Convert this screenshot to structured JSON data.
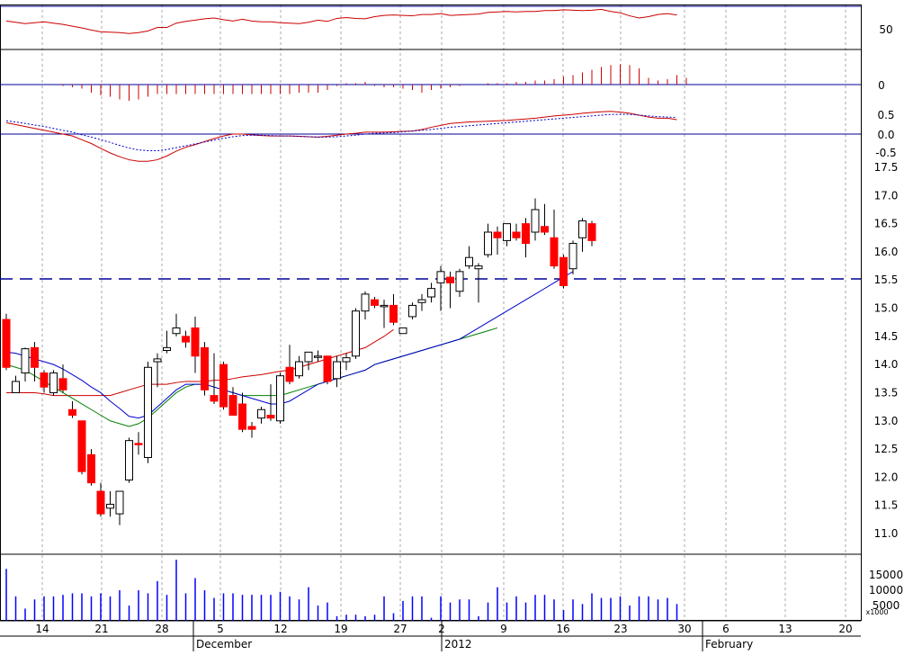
{
  "chart_data": {
    "type": "candlestick",
    "title": "",
    "ylim": [
      10.6,
      17.6
    ],
    "grid": true,
    "reference_level": 15.52,
    "colors": {
      "up": "#ffffff",
      "down": "#ff0000",
      "axis": "#000000",
      "frame": "#000099",
      "grid": "#aaaaaa",
      "ma_fast": "#0000cc",
      "ma_mid": "#008000",
      "ma_slow": "#cc0000",
      "volume": "#0000ff"
    },
    "x_tick_labels": [
      "14",
      "21",
      "28",
      "5",
      "12",
      "19",
      "27",
      "2",
      "9",
      "16",
      "23",
      "30",
      "6",
      "13",
      "20"
    ],
    "month_labels": [
      "December",
      "2012",
      "February"
    ],
    "y_tick_labels": [
      "17.5",
      "17.0",
      "16.5",
      "16.0",
      "15.5",
      "15.0",
      "14.5",
      "14.0",
      "13.5",
      "13.0",
      "12.5",
      "12.0",
      "11.5",
      "11.0"
    ],
    "y_ticks": [
      17.5,
      17.0,
      16.5,
      16.0,
      15.5,
      15.0,
      14.5,
      14.0,
      13.5,
      13.0,
      12.5,
      12.0,
      11.5,
      11.0
    ],
    "panels": {
      "rsi": {
        "label": "50",
        "values": [
          0.66,
          0.63,
          0.6,
          0.62,
          0.64,
          0.61,
          0.58,
          0.54,
          0.5,
          0.45,
          0.41,
          0.4,
          0.39,
          0.37,
          0.39,
          0.43,
          0.51,
          0.51,
          0.61,
          0.65,
          0.68,
          0.71,
          0.73,
          0.69,
          0.66,
          0.7,
          0.66,
          0.64,
          0.64,
          0.62,
          0.61,
          0.6,
          0.63,
          0.68,
          0.65,
          0.72,
          0.74,
          0.72,
          0.71,
          0.76,
          0.79,
          0.8,
          0.79,
          0.78,
          0.81,
          0.81,
          0.83,
          0.79,
          0.8,
          0.81,
          0.82,
          0.86,
          0.87,
          0.88,
          0.87,
          0.88,
          0.88,
          0.9,
          0.9,
          0.92,
          0.91,
          0.9,
          0.91,
          0.93,
          0.88,
          0.85,
          0.78,
          0.73,
          0.76,
          0.81,
          0.83,
          0.8
        ]
      },
      "histogram": {
        "label": "0",
        "values": [
          0,
          0,
          0,
          0,
          0,
          0,
          -0.05,
          -0.1,
          -0.15,
          -0.3,
          -0.4,
          -0.45,
          -0.55,
          -0.6,
          -0.55,
          -0.45,
          -0.35,
          -0.35,
          -0.35,
          -0.35,
          -0.35,
          -0.35,
          -0.35,
          -0.35,
          -0.35,
          -0.35,
          -0.35,
          -0.35,
          -0.35,
          -0.35,
          -0.35,
          -0.3,
          -0.3,
          -0.3,
          -0.2,
          -0.05,
          0.05,
          0.05,
          0.1,
          -0.05,
          -0.1,
          -0.1,
          -0.15,
          -0.2,
          -0.3,
          -0.2,
          -0.15,
          -0.1,
          -0.05,
          0,
          0,
          0.05,
          0.05,
          0.05,
          0.1,
          0.1,
          0.15,
          0.15,
          0.2,
          0.3,
          0.35,
          0.45,
          0.55,
          0.65,
          0.72,
          0.75,
          0.72,
          0.6,
          0.25,
          0.15,
          0.2,
          0.35,
          0.25
        ]
      },
      "macd": {
        "labels": [
          "0.5",
          "0.0",
          "-0.5"
        ],
        "macd": [
          0.3,
          0.25,
          0.2,
          0.15,
          0.1,
          0.05,
          0,
          -0.05,
          -0.15,
          -0.25,
          -0.38,
          -0.5,
          -0.6,
          -0.68,
          -0.72,
          -0.72,
          -0.68,
          -0.58,
          -0.45,
          -0.35,
          -0.28,
          -0.2,
          -0.12,
          -0.05,
          0,
          0,
          -0.02,
          -0.04,
          -0.05,
          -0.05,
          -0.05,
          -0.06,
          -0.07,
          -0.08,
          -0.06,
          -0.03,
          0,
          0.02,
          0.05,
          0.05,
          0.05,
          0.06,
          0.07,
          0.08,
          0.12,
          0.18,
          0.23,
          0.28,
          0.3,
          0.32,
          0.33,
          0.34,
          0.35,
          0.36,
          0.38,
          0.4,
          0.42,
          0.45,
          0.48,
          0.5,
          0.52,
          0.55,
          0.57,
          0.59,
          0.6,
          0.58,
          0.55,
          0.5,
          0.45,
          0.42,
          0.42,
          0.38
        ],
        "signal": [
          0.35,
          0.32,
          0.28,
          0.24,
          0.2,
          0.15,
          0.1,
          0.05,
          -0.02,
          -0.08,
          -0.15,
          -0.22,
          -0.3,
          -0.37,
          -0.42,
          -0.44,
          -0.44,
          -0.41,
          -0.36,
          -0.31,
          -0.26,
          -0.21,
          -0.16,
          -0.11,
          -0.07,
          -0.04,
          -0.03,
          -0.03,
          -0.04,
          -0.05,
          -0.05,
          -0.06,
          -0.07,
          -0.08,
          -0.08,
          -0.07,
          -0.05,
          -0.03,
          0,
          0.02,
          0.03,
          0.04,
          0.06,
          0.08,
          0.1,
          0.12,
          0.15,
          0.18,
          0.2,
          0.22,
          0.24,
          0.26,
          0.28,
          0.3,
          0.32,
          0.34,
          0.36,
          0.38,
          0.4,
          0.42,
          0.44,
          0.46,
          0.48,
          0.5,
          0.52,
          0.52,
          0.52,
          0.5,
          0.48,
          0.46,
          0.45,
          0.44
        ]
      },
      "volume": {
        "labels": [
          "15000",
          "10000",
          "5000"
        ],
        "unit_label": "x1000",
        "values": [
          17000,
          8000,
          4000,
          7000,
          8000,
          8000,
          8500,
          9000,
          9000,
          8000,
          9000,
          8000,
          10000,
          5000,
          10000,
          9000,
          13000,
          8500,
          20000,
          9000,
          14000,
          10000,
          7500,
          9000,
          9000,
          8500,
          8500,
          8500,
          8500,
          9500,
          8000,
          7000,
          11000,
          5000,
          6000,
          1500,
          2000,
          2000,
          1500,
          2000,
          8000,
          2500,
          6500,
          8000,
          8000,
          1000,
          8000,
          6000,
          7000,
          7000,
          1500,
          6000,
          11000,
          6000,
          8000,
          6000,
          8500,
          8500,
          7000,
          3500,
          7000,
          5500,
          9000,
          7500,
          7500,
          8000,
          5000,
          8000,
          8000,
          7000,
          7500,
          5500
        ]
      }
    },
    "candles": [
      {
        "o": 14.8,
        "h": 14.9,
        "c": 13.95,
        "l": 13.9
      },
      {
        "o": 13.5,
        "h": 13.8,
        "c": 13.7,
        "l": 13.5
      },
      {
        "o": 13.85,
        "h": 14.3,
        "c": 14.28,
        "l": 13.7
      },
      {
        "o": 14.3,
        "h": 14.4,
        "c": 13.95,
        "l": 13.7
      },
      {
        "o": 13.85,
        "h": 13.9,
        "c": 13.6,
        "l": 13.5
      },
      {
        "o": 13.5,
        "h": 13.9,
        "c": 13.85,
        "l": 13.45
      },
      {
        "o": 13.75,
        "h": 14.0,
        "c": 13.55,
        "l": 13.5
      },
      {
        "o": 13.2,
        "h": 13.35,
        "c": 13.1,
        "l": 13.05
      },
      {
        "o": 13.0,
        "h": 13.0,
        "c": 12.1,
        "l": 12.05
      },
      {
        "o": 12.4,
        "h": 12.5,
        "c": 11.9,
        "l": 11.85
      },
      {
        "o": 11.75,
        "h": 11.9,
        "c": 11.35,
        "l": 11.3
      },
      {
        "o": 11.45,
        "h": 11.75,
        "c": 11.52,
        "l": 11.3
      },
      {
        "o": 11.35,
        "h": 11.75,
        "c": 11.75,
        "l": 11.15
      },
      {
        "o": 11.95,
        "h": 12.7,
        "c": 12.65,
        "l": 11.9
      },
      {
        "o": 12.6,
        "h": 12.8,
        "c": 12.58,
        "l": 12.4
      },
      {
        "o": 12.35,
        "h": 14.05,
        "c": 13.95,
        "l": 12.25
      },
      {
        "o": 14.05,
        "h": 14.2,
        "c": 14.1,
        "l": 13.6
      },
      {
        "o": 14.25,
        "h": 14.6,
        "c": 14.3,
        "l": 14.2
      },
      {
        "o": 14.55,
        "h": 14.9,
        "c": 14.65,
        "l": 14.5
      },
      {
        "o": 14.5,
        "h": 14.6,
        "c": 14.4,
        "l": 14.3
      },
      {
        "o": 14.65,
        "h": 14.85,
        "c": 14.15,
        "l": 13.85
      },
      {
        "o": 14.3,
        "h": 14.4,
        "c": 13.55,
        "l": 13.45
      },
      {
        "o": 13.45,
        "h": 14.2,
        "c": 13.35,
        "l": 13.3
      },
      {
        "o": 14.0,
        "h": 14.05,
        "c": 13.25,
        "l": 13.2
      },
      {
        "o": 13.45,
        "h": 13.6,
        "c": 13.1,
        "l": 13.1
      },
      {
        "o": 13.3,
        "h": 13.5,
        "c": 12.85,
        "l": 12.8
      },
      {
        "o": 12.9,
        "h": 12.98,
        "c": 12.85,
        "l": 12.7
      },
      {
        "o": 13.05,
        "h": 13.25,
        "c": 13.2,
        "l": 12.95
      },
      {
        "o": 13.1,
        "h": 13.65,
        "c": 13.05,
        "l": 13.0
      },
      {
        "o": 13.0,
        "h": 13.85,
        "c": 13.8,
        "l": 12.95
      },
      {
        "o": 13.95,
        "h": 14.35,
        "c": 13.7,
        "l": 13.65
      },
      {
        "o": 13.8,
        "h": 14.15,
        "c": 14.05,
        "l": 13.75
      },
      {
        "o": 14.05,
        "h": 14.2,
        "c": 14.22,
        "l": 13.9
      },
      {
        "o": 14.15,
        "h": 14.25,
        "c": 14.15,
        "l": 14.05
      },
      {
        "o": 14.15,
        "h": 14.15,
        "c": 13.7,
        "l": 13.65
      },
      {
        "o": 13.75,
        "h": 14.15,
        "c": 14.05,
        "l": 13.6
      },
      {
        "o": 14.05,
        "h": 14.2,
        "c": 14.12,
        "l": 13.9
      },
      {
        "o": 14.15,
        "h": 15.0,
        "c": 14.95,
        "l": 14.1
      },
      {
        "o": 14.95,
        "h": 15.3,
        "c": 15.25,
        "l": 14.8
      },
      {
        "o": 15.15,
        "h": 15.2,
        "c": 15.05,
        "l": 15.0
      },
      {
        "o": 15.05,
        "h": 15.15,
        "c": 15.05,
        "l": 14.65
      },
      {
        "o": 15.05,
        "h": 15.25,
        "c": 14.75,
        "l": 14.7
      },
      {
        "o": 14.55,
        "h": 14.65,
        "c": 14.65,
        "l": 14.55
      },
      {
        "o": 14.85,
        "h": 15.1,
        "c": 15.05,
        "l": 14.8
      },
      {
        "o": 15.1,
        "h": 15.25,
        "c": 15.15,
        "l": 14.95
      },
      {
        "o": 15.2,
        "h": 15.45,
        "c": 15.35,
        "l": 15.1
      },
      {
        "o": 15.45,
        "h": 15.75,
        "c": 15.65,
        "l": 14.95
      },
      {
        "o": 15.55,
        "h": 15.65,
        "c": 15.45,
        "l": 15.0
      },
      {
        "o": 15.3,
        "h": 15.7,
        "c": 15.65,
        "l": 15.2
      },
      {
        "o": 15.75,
        "h": 16.1,
        "c": 15.9,
        "l": 15.7
      },
      {
        "o": 15.7,
        "h": 15.8,
        "c": 15.75,
        "l": 15.1
      },
      {
        "o": 15.95,
        "h": 16.5,
        "c": 16.35,
        "l": 15.9
      },
      {
        "o": 16.35,
        "h": 16.45,
        "c": 16.25,
        "l": 15.95
      },
      {
        "o": 16.2,
        "h": 16.5,
        "c": 16.5,
        "l": 16.1
      },
      {
        "o": 16.35,
        "h": 16.5,
        "c": 16.25,
        "l": 16.2
      },
      {
        "o": 16.5,
        "h": 16.6,
        "c": 16.15,
        "l": 15.9
      },
      {
        "o": 16.35,
        "h": 16.95,
        "c": 16.75,
        "l": 16.2
      },
      {
        "o": 16.45,
        "h": 16.85,
        "c": 16.35,
        "l": 16.3
      },
      {
        "o": 16.25,
        "h": 16.75,
        "c": 15.75,
        "l": 15.7
      },
      {
        "o": 15.9,
        "h": 15.95,
        "c": 15.4,
        "l": 15.35
      },
      {
        "o": 15.7,
        "h": 16.2,
        "c": 16.15,
        "l": 15.6
      },
      {
        "o": 16.25,
        "h": 16.6,
        "c": 16.55,
        "l": 16.0
      },
      {
        "o": 16.5,
        "h": 16.55,
        "c": 16.2,
        "l": 16.1
      }
    ],
    "ma_fast": [
      14.22,
      14.2,
      14.15,
      14.1,
      14.05,
      14.0,
      13.92,
      13.82,
      13.72,
      13.6,
      13.5,
      13.35,
      13.22,
      13.08,
      13.05,
      13.1,
      13.25,
      13.4,
      13.55,
      13.65,
      13.65,
      13.65,
      13.6,
      13.55,
      13.5,
      13.45,
      13.4,
      13.35,
      13.3,
      13.3,
      13.35,
      13.45,
      13.55,
      13.65,
      13.7,
      13.75,
      13.8,
      13.85,
      13.9,
      14.0,
      14.05,
      14.1,
      14.15,
      14.2,
      14.25,
      14.3,
      14.35,
      14.4,
      14.45,
      14.55,
      14.65,
      14.75,
      14.85,
      14.95,
      15.05,
      15.15,
      15.25,
      15.35,
      15.45,
      15.55,
      15.65
    ],
    "ma_mid": [
      14.0,
      13.95,
      13.9,
      13.8,
      13.7,
      13.6,
      13.5,
      13.4,
      13.3,
      13.2,
      13.1,
      13.0,
      12.95,
      12.9,
      12.95,
      13.05,
      13.2,
      13.35,
      13.5,
      13.6,
      13.65,
      13.65,
      13.6,
      13.55,
      13.5,
      13.45,
      13.45,
      13.45,
      13.45,
      13.45,
      13.5,
      13.55,
      13.6,
      13.65,
      13.7,
      13.75,
      13.8,
      13.85,
      13.9,
      14.0,
      14.05,
      14.1,
      14.15,
      14.2,
      14.25,
      14.3,
      14.35,
      14.4,
      14.45,
      14.5,
      14.55,
      14.6,
      14.65
    ],
    "ma_slow": [
      13.5,
      13.5,
      13.5,
      13.5,
      13.48,
      13.45,
      13.45,
      13.45,
      13.45,
      13.45,
      13.45,
      13.45,
      13.5,
      13.55,
      13.6,
      13.65,
      13.65,
      13.65,
      13.68,
      13.7,
      13.7,
      13.7,
      13.72,
      13.72,
      13.75,
      13.78,
      13.8,
      13.82,
      13.85,
      13.88,
      13.9,
      13.95,
      14.0,
      14.05,
      14.1,
      14.15,
      14.2,
      14.25,
      14.3,
      14.4,
      14.5,
      14.62
    ]
  }
}
